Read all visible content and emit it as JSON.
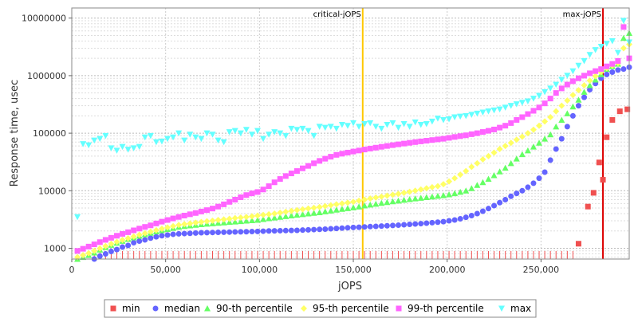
{
  "chart_data": {
    "type": "scatter",
    "title": "",
    "xlabel": "jOPS",
    "ylabel": "Response time, usec",
    "x_scale": "linear",
    "y_scale": "log",
    "xlim": [
      0,
      297000
    ],
    "ylim": [
      650,
      15000000
    ],
    "x_ticks": [
      0,
      50000,
      100000,
      150000,
      200000,
      250000
    ],
    "x_tick_labels": [
      "0",
      "50,000",
      "100,000",
      "150,000",
      "200,000",
      "250,000"
    ],
    "y_ticks": [
      1000,
      10000,
      100000,
      1000000,
      10000000
    ],
    "y_tick_labels": [
      "1000",
      "10000",
      "100000",
      "1000000",
      "10000000"
    ],
    "grid": true,
    "legend": "bottom",
    "markers": [
      {
        "name": "critical-jOPS",
        "x": 155000,
        "color": "#ffc800"
      },
      {
        "name": "max-jOPS",
        "x": 283000,
        "color": "#dd0000"
      }
    ],
    "series": [
      {
        "name": "min",
        "color": "#f05050",
        "marker": "square",
        "x": [
          270000,
          275000,
          278000,
          281000,
          283000,
          285000,
          288000,
          292000,
          296000
        ],
        "y": [
          1200,
          5300,
          9200,
          31000,
          15500,
          85000,
          170000,
          240000,
          260000
        ]
      },
      {
        "name": "median",
        "color": "#6464ff",
        "marker": "circle",
        "x": [
          3000,
          6000,
          9000,
          12000,
          15000,
          18000,
          21000,
          24000,
          27000,
          30000,
          33000,
          36000,
          39000,
          42000,
          45000,
          48000,
          51000,
          54000,
          57000,
          60000,
          63000,
          66000,
          69000,
          72000,
          75000,
          78000,
          81000,
          84000,
          87000,
          90000,
          93000,
          96000,
          99000,
          102000,
          105000,
          108000,
          111000,
          114000,
          117000,
          120000,
          123000,
          126000,
          129000,
          132000,
          135000,
          138000,
          141000,
          144000,
          147000,
          150000,
          153000,
          156000,
          159000,
          162000,
          165000,
          168000,
          171000,
          174000,
          177000,
          180000,
          183000,
          186000,
          189000,
          192000,
          195000,
          198000,
          201000,
          204000,
          207000,
          210000,
          213000,
          216000,
          219000,
          222000,
          225000,
          228000,
          231000,
          234000,
          237000,
          240000,
          243000,
          246000,
          249000,
          252000,
          255000,
          258000,
          261000,
          264000,
          267000,
          270000,
          273000,
          276000,
          279000,
          282000,
          285000,
          288000,
          291000,
          294000,
          297000
        ],
        "y": [
          550,
          560,
          580,
          650,
          730,
          800,
          880,
          950,
          1050,
          1120,
          1250,
          1330,
          1400,
          1500,
          1580,
          1650,
          1700,
          1750,
          1780,
          1800,
          1820,
          1840,
          1860,
          1870,
          1880,
          1890,
          1900,
          1910,
          1920,
          1930,
          1940,
          1950,
          1960,
          1980,
          2000,
          2010,
          2020,
          2030,
          2040,
          2050,
          2070,
          2090,
          2110,
          2130,
          2150,
          2180,
          2210,
          2240,
          2270,
          2300,
          2320,
          2350,
          2380,
          2400,
          2430,
          2460,
          2490,
          2520,
          2560,
          2600,
          2640,
          2680,
          2730,
          2780,
          2840,
          2900,
          3000,
          3100,
          3250,
          3450,
          3700,
          4000,
          4400,
          4900,
          5500,
          6200,
          7000,
          8000,
          9000,
          10000,
          11500,
          13500,
          16500,
          21000,
          34000,
          53000,
          80000,
          130000,
          200000,
          300000,
          420000,
          570000,
          730000,
          900000,
          1050000,
          1150000,
          1250000,
          1300000,
          1400000
        ]
      },
      {
        "name": "90-th percentile",
        "color": "#64ff64",
        "marker": "triangle-up",
        "x": [
          3000,
          6000,
          9000,
          12000,
          15000,
          18000,
          21000,
          24000,
          27000,
          30000,
          33000,
          36000,
          39000,
          42000,
          45000,
          48000,
          51000,
          54000,
          57000,
          60000,
          63000,
          66000,
          69000,
          72000,
          75000,
          78000,
          81000,
          84000,
          87000,
          90000,
          93000,
          96000,
          99000,
          102000,
          105000,
          108000,
          111000,
          114000,
          117000,
          120000,
          123000,
          126000,
          129000,
          132000,
          135000,
          138000,
          141000,
          144000,
          147000,
          150000,
          153000,
          156000,
          159000,
          162000,
          165000,
          168000,
          171000,
          174000,
          177000,
          180000,
          183000,
          186000,
          189000,
          192000,
          195000,
          198000,
          201000,
          204000,
          207000,
          210000,
          213000,
          216000,
          219000,
          222000,
          225000,
          228000,
          231000,
          234000,
          237000,
          240000,
          243000,
          246000,
          249000,
          252000,
          255000,
          258000,
          261000,
          264000,
          267000,
          270000,
          273000,
          276000,
          279000,
          282000,
          285000,
          288000,
          291000,
          294000,
          297000
        ],
        "y": [
          650,
          700,
          760,
          840,
          940,
          1040,
          1140,
          1240,
          1340,
          1440,
          1540,
          1640,
          1740,
          1850,
          1950,
          2050,
          2150,
          2250,
          2350,
          2420,
          2480,
          2540,
          2600,
          2650,
          2700,
          2750,
          2800,
          2850,
          2900,
          2950,
          3000,
          3050,
          3100,
          3200,
          3300,
          3400,
          3500,
          3600,
          3700,
          3800,
          3900,
          4000,
          4100,
          4200,
          4350,
          4500,
          4650,
          4800,
          4950,
          5100,
          5300,
          5500,
          5700,
          5900,
          6100,
          6300,
          6500,
          6700,
          6900,
          7100,
          7300,
          7500,
          7700,
          7900,
          8100,
          8300,
          8600,
          9000,
          9500,
          10000,
          11000,
          12500,
          14000,
          16000,
          18500,
          21500,
          25000,
          30000,
          36000,
          43000,
          50000,
          58000,
          68000,
          80000,
          95000,
          130000,
          170000,
          220000,
          290000,
          380000,
          520000,
          680000,
          850000,
          1050000,
          1300000,
          1450000,
          1600000,
          4500000,
          5500000
        ]
      },
      {
        "name": "95-th percentile",
        "color": "#ffff64",
        "marker": "diamond",
        "x": [
          3000,
          6000,
          9000,
          12000,
          15000,
          18000,
          21000,
          24000,
          27000,
          30000,
          33000,
          36000,
          39000,
          42000,
          45000,
          48000,
          51000,
          54000,
          57000,
          60000,
          63000,
          66000,
          69000,
          72000,
          75000,
          78000,
          81000,
          84000,
          87000,
          90000,
          93000,
          96000,
          99000,
          102000,
          105000,
          108000,
          111000,
          114000,
          117000,
          120000,
          123000,
          126000,
          129000,
          132000,
          135000,
          138000,
          141000,
          144000,
          147000,
          150000,
          153000,
          156000,
          159000,
          162000,
          165000,
          168000,
          171000,
          174000,
          177000,
          180000,
          183000,
          186000,
          189000,
          192000,
          195000,
          198000,
          201000,
          204000,
          207000,
          210000,
          213000,
          216000,
          219000,
          222000,
          225000,
          228000,
          231000,
          234000,
          237000,
          240000,
          243000,
          246000,
          249000,
          252000,
          255000,
          258000,
          261000,
          264000,
          267000,
          270000,
          273000,
          276000,
          279000,
          282000,
          285000,
          288000,
          291000,
          294000,
          297000
        ],
        "y": [
          700,
          760,
          820,
          900,
          990,
          1090,
          1190,
          1290,
          1390,
          1490,
          1600,
          1710,
          1820,
          1940,
          2060,
          2180,
          2300,
          2420,
          2540,
          2620,
          2700,
          2780,
          2860,
          2940,
          3020,
          3100,
          3180,
          3260,
          3340,
          3420,
          3500,
          3600,
          3700,
          3800,
          3900,
          4000,
          4150,
          4300,
          4450,
          4600,
          4750,
          4900,
          5050,
          5200,
          5400,
          5600,
          5800,
          6000,
          6200,
          6400,
          6700,
          7000,
          7300,
          7600,
          7900,
          8200,
          8500,
          8800,
          9200,
          9600,
          10000,
          10500,
          11000,
          11500,
          12000,
          13000,
          14500,
          16500,
          19000,
          22000,
          26000,
          30000,
          35000,
          40000,
          46000,
          53000,
          60000,
          68000,
          77000,
          87000,
          100000,
          115000,
          135000,
          160000,
          190000,
          240000,
          300000,
          370000,
          460000,
          560000,
          680000,
          820000,
          980000,
          1150000,
          1350000,
          1500000,
          1650000,
          3000000,
          3500000
        ]
      },
      {
        "name": "99-th percentile",
        "color": "#ff64ff",
        "marker": "square",
        "x": [
          3000,
          6000,
          9000,
          12000,
          15000,
          18000,
          21000,
          24000,
          27000,
          30000,
          33000,
          36000,
          39000,
          42000,
          45000,
          48000,
          51000,
          54000,
          57000,
          60000,
          63000,
          66000,
          69000,
          72000,
          75000,
          78000,
          81000,
          84000,
          87000,
          90000,
          93000,
          96000,
          99000,
          102000,
          105000,
          108000,
          111000,
          114000,
          117000,
          120000,
          123000,
          126000,
          129000,
          132000,
          135000,
          138000,
          141000,
          144000,
          147000,
          150000,
          153000,
          156000,
          159000,
          162000,
          165000,
          168000,
          171000,
          174000,
          177000,
          180000,
          183000,
          186000,
          189000,
          192000,
          195000,
          198000,
          201000,
          204000,
          207000,
          210000,
          213000,
          216000,
          219000,
          222000,
          225000,
          228000,
          231000,
          234000,
          237000,
          240000,
          243000,
          246000,
          249000,
          252000,
          255000,
          258000,
          261000,
          264000,
          267000,
          270000,
          273000,
          276000,
          279000,
          282000,
          285000,
          288000,
          291000,
          294000,
          297000
        ],
        "y": [
          900,
          980,
          1070,
          1170,
          1280,
          1400,
          1520,
          1650,
          1780,
          1900,
          2050,
          2200,
          2350,
          2500,
          2700,
          2900,
          3100,
          3300,
          3500,
          3700,
          3900,
          4100,
          4350,
          4600,
          4900,
          5300,
          5800,
          6400,
          7000,
          7700,
          8400,
          9000,
          9500,
          10500,
          12000,
          14000,
          16000,
          18000,
          20000,
          22000,
          24500,
          27000,
          30000,
          33000,
          36000,
          39000,
          42000,
          44000,
          46000,
          48000,
          50000,
          52000,
          54000,
          56000,
          58000,
          60000,
          62000,
          64000,
          66000,
          68000,
          70000,
          72000,
          74000,
          76000,
          78000,
          80000,
          83000,
          86000,
          89000,
          92000,
          96000,
          100000,
          105000,
          110000,
          116000,
          125000,
          135000,
          150000,
          170000,
          190000,
          215000,
          245000,
          280000,
          330000,
          400000,
          500000,
          600000,
          700000,
          800000,
          900000,
          1000000,
          1100000,
          1200000,
          1300000,
          1450000,
          1600000,
          1800000,
          7000000,
          2000000
        ]
      },
      {
        "name": "max",
        "color": "#64ffff",
        "marker": "triangle-down",
        "x": [
          3000,
          6000,
          9000,
          12000,
          15000,
          18000,
          21000,
          24000,
          27000,
          30000,
          33000,
          36000,
          39000,
          42000,
          45000,
          48000,
          51000,
          54000,
          57000,
          60000,
          63000,
          66000,
          69000,
          72000,
          75000,
          78000,
          81000,
          84000,
          87000,
          90000,
          93000,
          96000,
          99000,
          102000,
          105000,
          108000,
          111000,
          114000,
          117000,
          120000,
          123000,
          126000,
          129000,
          132000,
          135000,
          138000,
          141000,
          144000,
          147000,
          150000,
          153000,
          156000,
          159000,
          162000,
          165000,
          168000,
          171000,
          174000,
          177000,
          180000,
          183000,
          186000,
          189000,
          192000,
          195000,
          198000,
          201000,
          204000,
          207000,
          210000,
          213000,
          216000,
          219000,
          222000,
          225000,
          228000,
          231000,
          234000,
          237000,
          240000,
          243000,
          246000,
          249000,
          252000,
          255000,
          258000,
          261000,
          264000,
          267000,
          270000,
          273000,
          276000,
          279000,
          282000,
          285000,
          288000,
          291000,
          294000,
          297000
        ],
        "y": [
          3500,
          65000,
          62000,
          75000,
          80000,
          90000,
          55000,
          50000,
          58000,
          52000,
          55000,
          58000,
          85000,
          90000,
          70000,
          72000,
          80000,
          85000,
          100000,
          75000,
          95000,
          85000,
          80000,
          100000,
          95000,
          75000,
          70000,
          105000,
          110000,
          100000,
          115000,
          95000,
          110000,
          80000,
          95000,
          105000,
          100000,
          90000,
          120000,
          115000,
          120000,
          110000,
          90000,
          130000,
          125000,
          130000,
          120000,
          140000,
          135000,
          150000,
          130000,
          145000,
          150000,
          130000,
          120000,
          140000,
          150000,
          125000,
          145000,
          130000,
          155000,
          140000,
          145000,
          160000,
          180000,
          170000,
          175000,
          190000,
          195000,
          200000,
          210000,
          220000,
          230000,
          240000,
          250000,
          260000,
          280000,
          300000,
          320000,
          340000,
          360000,
          400000,
          450000,
          520000,
          600000,
          700000,
          850000,
          1000000,
          1200000,
          1500000,
          1800000,
          2300000,
          2800000,
          3200000,
          3600000,
          4000000,
          2500000,
          9000000,
          3800000
        ]
      }
    ]
  }
}
